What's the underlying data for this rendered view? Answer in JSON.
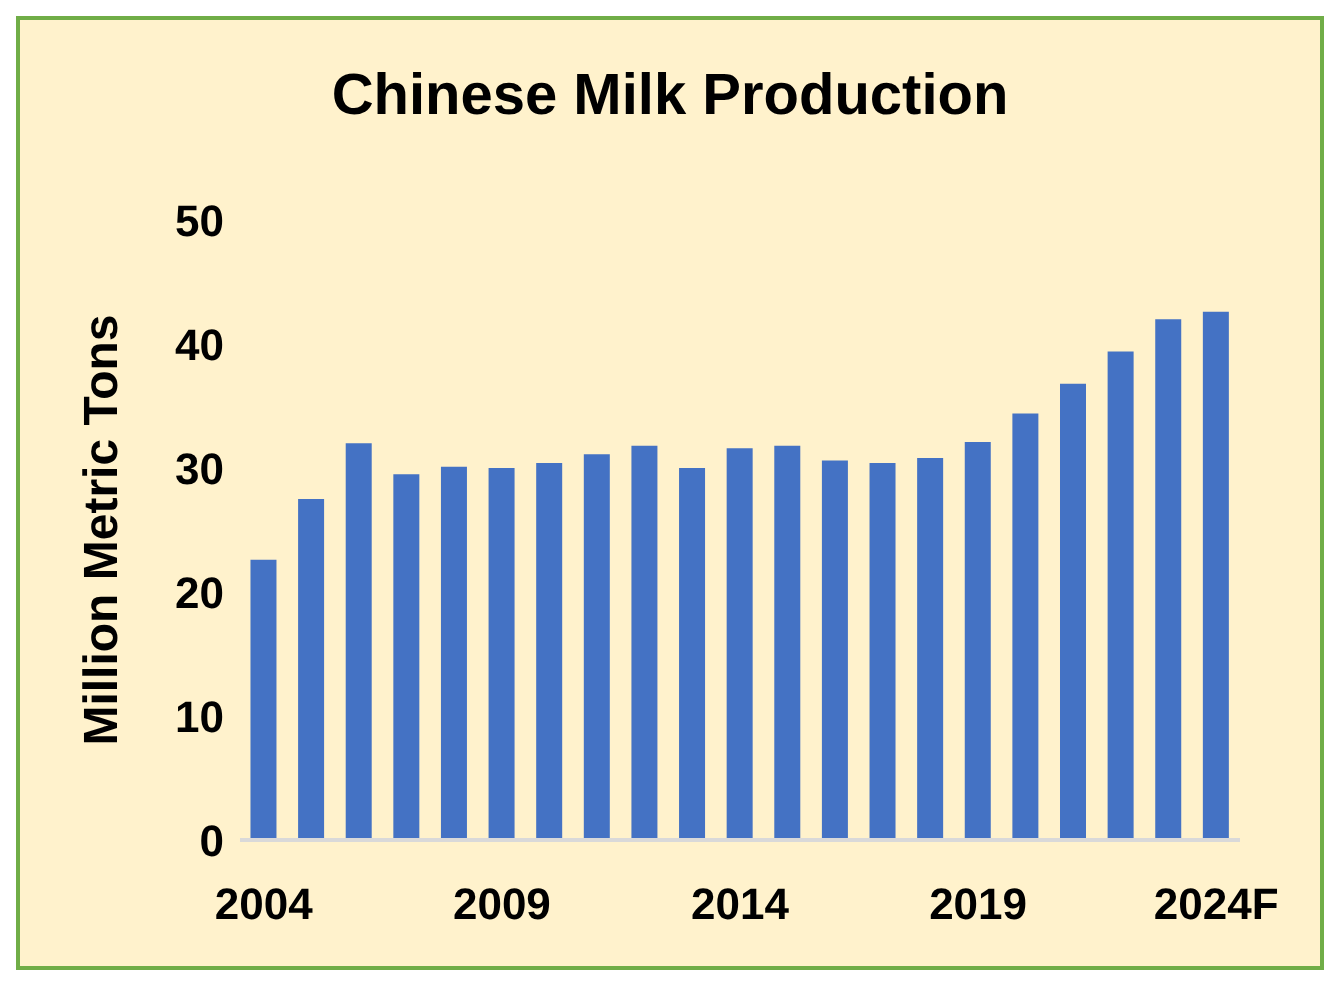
{
  "chart_data": {
    "type": "bar",
    "title": "Chinese Milk Production",
    "ylabel": "Million Metric Tons",
    "categories": [
      "2004",
      null,
      null,
      null,
      null,
      "2009",
      null,
      null,
      null,
      null,
      "2014",
      null,
      null,
      null,
      null,
      "2019",
      null,
      null,
      null,
      null,
      "2024F"
    ],
    "values": [
      22.6,
      27.5,
      32.0,
      29.5,
      30.1,
      30.0,
      30.4,
      31.1,
      31.8,
      30.0,
      31.6,
      31.8,
      30.6,
      30.4,
      30.8,
      32.1,
      34.4,
      36.8,
      39.4,
      42.0,
      42.6
    ],
    "color": "#4472c4",
    "ylim": [
      0,
      50
    ],
    "yticks": [
      0,
      10,
      20,
      30,
      40,
      50
    ],
    "grid": false,
    "legend": false
  }
}
